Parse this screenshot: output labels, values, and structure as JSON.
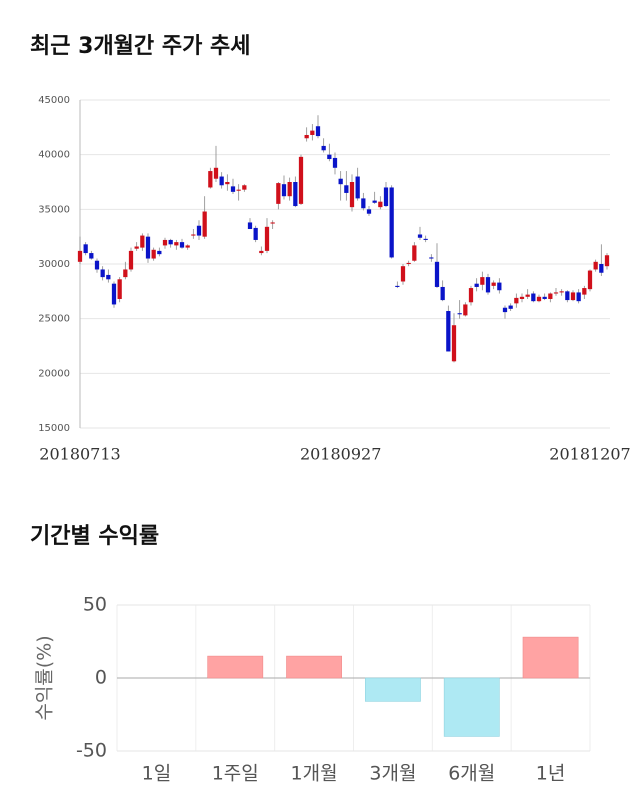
{
  "chart_data": [
    {
      "type": "candlestick",
      "title": "최근 3개월간 주가 추세",
      "categories": [
        "20180713",
        null,
        null,
        null,
        null,
        null,
        null,
        null,
        null,
        null,
        null,
        null,
        null,
        null,
        null,
        null,
        null,
        null,
        null,
        null,
        null,
        null,
        null,
        null,
        null,
        null,
        null,
        null,
        null,
        null,
        null,
        null,
        null,
        null,
        null,
        null,
        null,
        null,
        null,
        null,
        null,
        null,
        null,
        null,
        null,
        null,
        "20180927",
        null,
        null,
        null,
        null,
        null,
        null,
        null,
        null,
        null,
        null,
        null,
        null,
        null,
        null,
        null,
        null,
        null,
        null,
        null,
        null,
        null,
        null,
        null,
        null,
        null,
        null,
        null,
        null,
        null,
        null,
        null,
        null,
        null,
        null,
        null,
        null,
        null,
        null,
        null,
        null,
        null,
        null,
        null,
        null,
        null,
        null,
        "20181207"
      ],
      "ohlc": [
        [
          30200,
          32500,
          30000,
          31200
        ],
        [
          31800,
          32000,
          30800,
          31000
        ],
        [
          31000,
          31200,
          30400,
          30500
        ],
        [
          30300,
          30500,
          29200,
          29500
        ],
        [
          29500,
          29800,
          28500,
          28800
        ],
        [
          29000,
          29500,
          28300,
          28600
        ],
        [
          28200,
          28400,
          26000,
          26300
        ],
        [
          26800,
          28800,
          26500,
          28600
        ],
        [
          28800,
          30200,
          28600,
          29500
        ],
        [
          29500,
          31500,
          29300,
          31200
        ],
        [
          31400,
          32000,
          31200,
          31600
        ],
        [
          31500,
          32800,
          31200,
          32600
        ],
        [
          32500,
          32800,
          30100,
          30500
        ],
        [
          30500,
          31500,
          30300,
          31300
        ],
        [
          31200,
          31500,
          30700,
          30900
        ],
        [
          31700,
          32400,
          31400,
          32200
        ],
        [
          32200,
          32300,
          31500,
          31800
        ],
        [
          31700,
          32200,
          31300,
          32000
        ],
        [
          32000,
          32300,
          31400,
          31500
        ],
        [
          31500,
          31800,
          31300,
          31700
        ],
        [
          32600,
          33200,
          32300,
          32700
        ],
        [
          33500,
          34000,
          32200,
          32600
        ],
        [
          32500,
          36200,
          32300,
          34800
        ],
        [
          37000,
          38800,
          36900,
          38500
        ],
        [
          37800,
          40800,
          37500,
          38800
        ],
        [
          38000,
          38400,
          36900,
          37200
        ],
        [
          37300,
          38200,
          36700,
          37500
        ],
        [
          37100,
          37800,
          36400,
          36600
        ],
        [
          36700,
          37300,
          35800,
          36800
        ],
        [
          36800,
          37300,
          36600,
          37200
        ],
        [
          33800,
          34200,
          33200,
          33200
        ],
        [
          33300,
          33500,
          32000,
          32200
        ],
        [
          31000,
          31600,
          30800,
          31200
        ],
        [
          31200,
          34200,
          31000,
          33400
        ],
        [
          33700,
          34000,
          33200,
          33800
        ],
        [
          35500,
          37500,
          35000,
          37400
        ],
        [
          37300,
          38100,
          35900,
          36200
        ],
        [
          36200,
          37900,
          35800,
          37500
        ],
        [
          37500,
          38000,
          35200,
          35300
        ],
        [
          35500,
          40000,
          35400,
          39800
        ],
        [
          41500,
          42500,
          41200,
          41800
        ],
        [
          41800,
          42800,
          41300,
          42200
        ],
        [
          42600,
          43600,
          41500,
          41700
        ],
        [
          40800,
          41500,
          40200,
          40400
        ],
        [
          40000,
          41000,
          39400,
          39600
        ],
        [
          39700,
          40200,
          38200,
          38800
        ],
        [
          37800,
          38500,
          35800,
          37300
        ],
        [
          37200,
          38500,
          35800,
          36500
        ],
        [
          35200,
          38200,
          34800,
          37500
        ],
        [
          38000,
          38800,
          35800,
          36000
        ],
        [
          36000,
          36500,
          34900,
          35100
        ],
        [
          35000,
          35300,
          34400,
          34600
        ],
        [
          35800,
          36600,
          35500,
          35600
        ],
        [
          35200,
          36200,
          35000,
          35700
        ],
        [
          37000,
          37500,
          35200,
          35300
        ],
        [
          37000,
          37200,
          30500,
          30600
        ],
        [
          28000,
          28400,
          27800,
          27900
        ],
        [
          28400,
          30000,
          28100,
          29800
        ],
        [
          30000,
          30300,
          29800,
          30100
        ],
        [
          30300,
          32000,
          30200,
          31700
        ],
        [
          32700,
          33400,
          32200,
          32400
        ],
        [
          32300,
          32600,
          32000,
          32200
        ],
        [
          30600,
          30900,
          30200,
          30500
        ],
        [
          30200,
          31900,
          27800,
          27900
        ],
        [
          27900,
          28500,
          26600,
          26700
        ],
        [
          25700,
          26200,
          22000,
          22000
        ],
        [
          21100,
          25500,
          21000,
          24400
        ],
        [
          25500,
          26700,
          25000,
          25400
        ],
        [
          25300,
          26500,
          25200,
          26300
        ],
        [
          26500,
          28000,
          26200,
          27800
        ],
        [
          28200,
          28700,
          27500,
          27900
        ],
        [
          28100,
          29300,
          27600,
          28800
        ],
        [
          28800,
          29100,
          27200,
          27400
        ],
        [
          28000,
          28500,
          27700,
          28300
        ],
        [
          28300,
          28700,
          27300,
          27600
        ],
        [
          26000,
          26200,
          25000,
          25600
        ],
        [
          26200,
          26400,
          25700,
          25900
        ],
        [
          26400,
          27300,
          26000,
          26900
        ],
        [
          26800,
          27300,
          26500,
          27000
        ],
        [
          27000,
          27700,
          26800,
          27200
        ],
        [
          27300,
          27500,
          26500,
          26600
        ],
        [
          26600,
          27200,
          26500,
          27000
        ],
        [
          27000,
          27300,
          26700,
          26800
        ],
        [
          26800,
          27400,
          26500,
          27300
        ],
        [
          27300,
          27800,
          27100,
          27400
        ],
        [
          27400,
          27700,
          27100,
          27500
        ],
        [
          27500,
          27600,
          26500,
          26700
        ],
        [
          26700,
          27600,
          26600,
          27400
        ],
        [
          27400,
          27700,
          26400,
          26600
        ],
        [
          27200,
          28000,
          26800,
          27800
        ],
        [
          27700,
          29500,
          27500,
          29400
        ],
        [
          29500,
          30400,
          29300,
          30200
        ],
        [
          30000,
          31800,
          28900,
          29200
        ],
        [
          29800,
          31000,
          29500,
          30800
        ]
      ],
      "up_color": "#d0101b",
      "down_color": "#0a14c8",
      "ylim": [
        15000,
        45000
      ],
      "yticks": [
        15000,
        20000,
        25000,
        30000,
        35000,
        40000,
        45000
      ],
      "grid": true
    },
    {
      "type": "bar",
      "title": "기간별 수익률",
      "ylabel": "수익률(%)",
      "categories": [
        "1일",
        "1주일",
        "1개월",
        "3개월",
        "6개월",
        "1년"
      ],
      "values": [
        0,
        15,
        15,
        -16,
        -40,
        28
      ],
      "positive_color": "#ffa3a3",
      "negative_color": "#aee9f3",
      "ylim": [
        -50,
        50
      ],
      "yticks": [
        -50,
        0,
        50
      ],
      "grid": true
    }
  ]
}
